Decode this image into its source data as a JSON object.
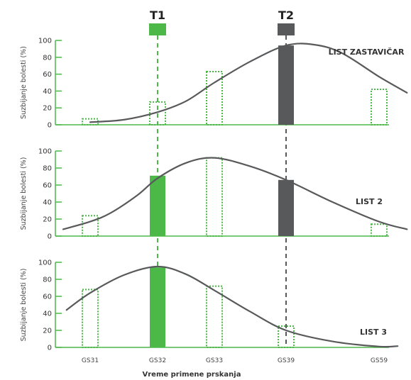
{
  "chart_data": {
    "type": "bar",
    "x_title": "Vreme primene prskanja",
    "categories": [
      "GS31",
      "GS32",
      "GS33",
      "GS39",
      "GS59"
    ],
    "treatments": [
      {
        "label": "T1",
        "category": "GS32",
        "color": "#4cb848"
      },
      {
        "label": "T2",
        "category": "GS39",
        "color": "#58595b"
      }
    ],
    "colors": {
      "green": "#4cb848",
      "dark": "#58595b",
      "curve": "#58595b",
      "axis": "#4cb848"
    },
    "panels": [
      {
        "name": "LIST ZASTAVIČAR",
        "ylabel": "Suzbijanje bolesti (%)",
        "ylim": [
          0,
          100
        ],
        "yticks": [
          "0",
          "20",
          "40",
          "60",
          "80",
          "100"
        ],
        "bars": [
          {
            "category": "GS31",
            "value": 7,
            "style": "dotted"
          },
          {
            "category": "GS32",
            "value": 27,
            "style": "dotted"
          },
          {
            "category": "GS33",
            "value": 63,
            "style": "dotted"
          },
          {
            "category": "GS39",
            "value": 94,
            "style": "solid-dark"
          },
          {
            "category": "GS59",
            "value": 42,
            "style": "dotted"
          }
        ],
        "curve": [
          [
            0,
            3
          ],
          [
            0.5,
            6
          ],
          [
            1,
            15
          ],
          [
            1.5,
            28
          ],
          [
            2,
            50
          ],
          [
            2.5,
            75
          ],
          [
            3,
            94
          ],
          [
            3.3,
            95
          ],
          [
            3.6,
            85
          ],
          [
            4,
            57
          ],
          [
            4.3,
            38
          ]
        ]
      },
      {
        "name": "LIST 2",
        "ylabel": "Suzbijanje bolesti (%)",
        "ylim": [
          0,
          100
        ],
        "yticks": [
          "0",
          "20",
          "40",
          "60",
          "80",
          "100"
        ],
        "bars": [
          {
            "category": "GS31",
            "value": 24,
            "style": "dotted"
          },
          {
            "category": "GS32",
            "value": 71,
            "style": "solid-green"
          },
          {
            "category": "GS33",
            "value": 92,
            "style": "dotted"
          },
          {
            "category": "GS39",
            "value": 66,
            "style": "solid-dark"
          },
          {
            "category": "GS59",
            "value": 14,
            "style": "dotted"
          }
        ],
        "curve": [
          [
            -0.4,
            8
          ],
          [
            0,
            17
          ],
          [
            0.3,
            27
          ],
          [
            0.7,
            48
          ],
          [
            1,
            68
          ],
          [
            1.5,
            86
          ],
          [
            2,
            92
          ],
          [
            2.5,
            82
          ],
          [
            3,
            66
          ],
          [
            3.5,
            40
          ],
          [
            4,
            17
          ],
          [
            4.3,
            8
          ]
        ]
      },
      {
        "name": "LIST 3",
        "ylabel": "Suzbijanje bolesti (%)",
        "ylim": [
          0,
          100
        ],
        "yticks": [
          "0",
          "20",
          "40",
          "60",
          "80",
          "100"
        ],
        "bars": [
          {
            "category": "GS31",
            "value": 68,
            "style": "dotted"
          },
          {
            "category": "GS32",
            "value": 94,
            "style": "solid-green"
          },
          {
            "category": "GS33",
            "value": 72,
            "style": "dotted"
          },
          {
            "category": "GS39",
            "value": 25,
            "style": "dotted"
          }
        ],
        "curve": [
          [
            -0.35,
            44
          ],
          [
            0,
            64
          ],
          [
            0.5,
            85
          ],
          [
            1,
            95
          ],
          [
            1.5,
            86
          ],
          [
            2,
            67
          ],
          [
            2.5,
            42
          ],
          [
            3,
            20
          ],
          [
            3.5,
            7
          ],
          [
            4,
            1
          ],
          [
            4.2,
            1.5
          ]
        ]
      }
    ]
  }
}
